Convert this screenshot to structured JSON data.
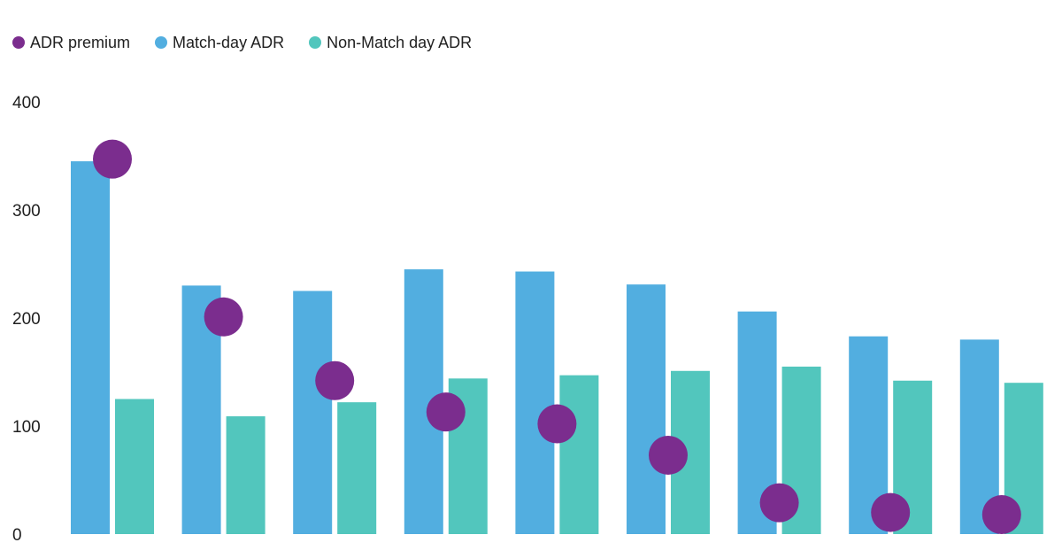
{
  "colors": {
    "adr_premium": "#7b2d8e",
    "match_day_adr": "#52aee0",
    "non_match_day_adr": "#52c6bd"
  },
  "legend": {
    "adr_premium": "ADR premium",
    "match_day_adr": "Match-day ADR",
    "non_match_day_adr": "Non-Match day ADR"
  },
  "chart_data": {
    "type": "bar",
    "ylim": [
      0,
      400
    ],
    "yticks": [
      0,
      100,
      200,
      300,
      400
    ],
    "grid": false,
    "legend_position": "top-left",
    "series": [
      {
        "name": "Match-day ADR",
        "type": "bar",
        "values": [
          345,
          230,
          225,
          245,
          243,
          231,
          206,
          183,
          180
        ]
      },
      {
        "name": "Non-Match day ADR",
        "type": "bar",
        "values": [
          125,
          109,
          122,
          144,
          147,
          151,
          155,
          142,
          140
        ]
      },
      {
        "name": "ADR premium",
        "type": "scatter",
        "values": [
          347,
          201,
          142,
          113,
          102,
          73,
          29,
          20,
          18
        ]
      }
    ]
  }
}
